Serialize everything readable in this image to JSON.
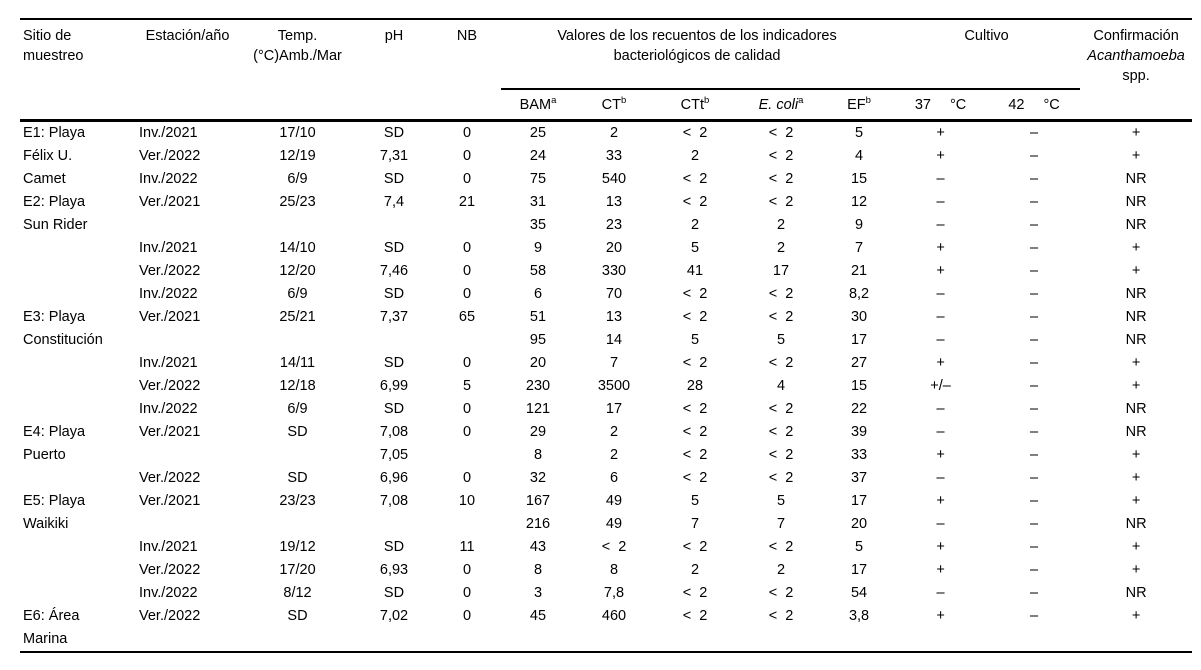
{
  "table": {
    "headers": {
      "site": "Sitio de muestreo",
      "season": "Estación/año",
      "temp_line1": "Temp.",
      "temp_line2": "(°C)Amb./Mar",
      "ph": "pH",
      "nb": "NB",
      "indicators_line1": "Valores de los recuentos de los indicadores",
      "indicators_line2": "bacteriológicos de calidad",
      "cultivo": "Cultivo",
      "confirm_line1": "Confirmación",
      "confirm_line2": "Acanthamoeba",
      "confirm_line3": "spp."
    },
    "subheaders": {
      "bam": {
        "label": "BAM",
        "sup": "a"
      },
      "ct": {
        "label": "CT",
        "sup": "b"
      },
      "ctt": {
        "label": "CTt",
        "sup": "b"
      },
      "ecoli": {
        "label": "E. coli",
        "sup": "a"
      },
      "ef": {
        "label": "EF",
        "sup": "b"
      },
      "c37": {
        "num": "37",
        "unit": "°C"
      },
      "c42": {
        "num": "42",
        "unit": "°C"
      }
    },
    "column_keys": [
      "site",
      "season",
      "temp",
      "ph",
      "nb",
      "bam",
      "ct",
      "ctt",
      "ecoli",
      "ef",
      "cultivo-37",
      "cultivo-42",
      "confirmation"
    ],
    "rows": [
      [
        "E1: Playa",
        "Inv./2021",
        "17/10",
        "SD",
        "0",
        "25",
        "2",
        "<  2",
        "<  2",
        "5",
        "+",
        "–",
        "+"
      ],
      [
        "Félix U.",
        "Ver./2022",
        "12/19",
        "7,31",
        "0",
        "24",
        "33",
        "2",
        "<  2",
        "4",
        "+",
        "–",
        "+"
      ],
      [
        "Camet",
        "Inv./2022",
        "6/9",
        "SD",
        "0",
        "75",
        "540",
        "<  2",
        "<  2",
        "15",
        "–",
        "–",
        "NR"
      ],
      [
        "E2: Playa",
        "Ver./2021",
        "25/23",
        "7,4",
        "21",
        "31",
        "13",
        "<  2",
        "<  2",
        "12",
        "–",
        "–",
        "NR"
      ],
      [
        "Sun Rider",
        "",
        "",
        "",
        "",
        "35",
        "23",
        "2",
        "2",
        "9",
        "–",
        "–",
        "NR"
      ],
      [
        "",
        "Inv./2021",
        "14/10",
        "SD",
        "0",
        "9",
        "20",
        "5",
        "2",
        "7",
        "+",
        "–",
        "+"
      ],
      [
        "",
        "Ver./2022",
        "12/20",
        "7,46",
        "0",
        "58",
        "330",
        "41",
        "17",
        "21",
        "+",
        "–",
        "+"
      ],
      [
        "",
        "Inv./2022",
        "6/9",
        "SD",
        "0",
        "6",
        "70",
        "<  2",
        "<  2",
        "8,2",
        "–",
        "–",
        "NR"
      ],
      [
        "E3: Playa",
        "Ver./2021",
        "25/21",
        "7,37",
        "65",
        "51",
        "13",
        "<  2",
        "<  2",
        "30",
        "–",
        "–",
        "NR"
      ],
      [
        "Constitución",
        "",
        "",
        "",
        "",
        "95",
        "14",
        "5",
        "5",
        "17",
        "–",
        "–",
        "NR"
      ],
      [
        "",
        "Inv./2021",
        "14/11",
        "SD",
        "0",
        "20",
        "7",
        "<  2",
        "<  2",
        "27",
        "+",
        "–",
        "+"
      ],
      [
        "",
        "Ver./2022",
        "12/18",
        "6,99",
        "5",
        "230",
        "3500",
        "28",
        "4",
        "15",
        "+/–",
        "–",
        "+"
      ],
      [
        "",
        "Inv./2022",
        "6/9",
        "SD",
        "0",
        "121",
        "17",
        "<  2",
        "<  2",
        "22",
        "–",
        "–",
        "NR"
      ],
      [
        "E4: Playa",
        "Ver./2021",
        "SD",
        "7,08",
        "0",
        "29",
        "2",
        "<  2",
        "<  2",
        "39",
        "–",
        "–",
        "NR"
      ],
      [
        "Puerto",
        "",
        "",
        "7,05",
        "",
        "8",
        "2",
        "<  2",
        "<  2",
        "33",
        "+",
        "–",
        "+"
      ],
      [
        "",
        "Ver./2022",
        "SD",
        "6,96",
        "0",
        "32",
        "6",
        "<  2",
        "<  2",
        "37",
        "–",
        "–",
        "+"
      ],
      [
        "E5: Playa",
        "Ver./2021",
        "23/23",
        "7,08",
        "10",
        "167",
        "49",
        "5",
        "5",
        "17",
        "+",
        "–",
        "+"
      ],
      [
        "Waikiki",
        "",
        "",
        "",
        "",
        "216",
        "49",
        "7",
        "7",
        "20",
        "–",
        "–",
        "NR"
      ],
      [
        "",
        "Inv./2021",
        "19/12",
        "SD",
        "11",
        "43",
        "<  2",
        "<  2",
        "<  2",
        "5",
        "+",
        "–",
        "+"
      ],
      [
        "",
        "Ver./2022",
        "17/20",
        "6,93",
        "0",
        "8",
        "8",
        "2",
        "2",
        "17",
        "+",
        "–",
        "+"
      ],
      [
        "",
        "Inv./2022",
        "8/12",
        "SD",
        "0",
        "3",
        "7,8",
        "<  2",
        "<  2",
        "54",
        "–",
        "–",
        "NR"
      ],
      [
        "E6: Área",
        "Ver./2022",
        "SD",
        "7,02",
        "0",
        "45",
        "460",
        "<  2",
        "<  2",
        "3,8",
        "+",
        "–",
        "+"
      ],
      [
        "Marina",
        "",
        "",
        "",
        "",
        "",
        "",
        "",
        "",
        "",
        "",
        "",
        ""
      ]
    ]
  }
}
